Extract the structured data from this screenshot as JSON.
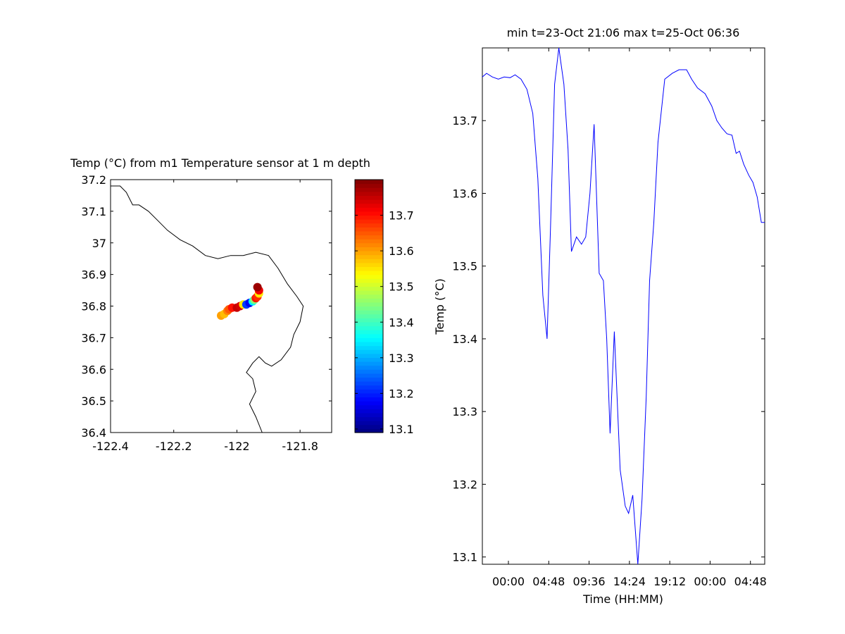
{
  "chart_data": [
    {
      "type": "scatter",
      "title": "Temp (°C) from m1 Temperature sensor at 1 m depth",
      "xlim": [
        -122.4,
        -121.7
      ],
      "ylim": [
        36.4,
        37.2
      ],
      "x_ticks": [
        -122.4,
        -122.2,
        -122,
        -121.8
      ],
      "x_tick_labels": [
        "-122.4",
        "-122.2",
        "-122",
        "-121.8"
      ],
      "y_ticks": [
        36.4,
        36.5,
        36.6,
        36.7,
        36.8,
        36.9,
        37.0,
        37.1,
        37.2
      ],
      "y_tick_labels": [
        "36.4",
        "36.5",
        "36.6",
        "36.7",
        "36.8",
        "36.9",
        "37",
        "37.1",
        "37.2"
      ],
      "coastline": [
        [
          -122.4,
          37.18
        ],
        [
          -122.37,
          37.18
        ],
        [
          -122.35,
          37.16
        ],
        [
          -122.33,
          37.12
        ],
        [
          -122.31,
          37.12
        ],
        [
          -122.28,
          37.1
        ],
        [
          -122.25,
          37.07
        ],
        [
          -122.22,
          37.04
        ],
        [
          -122.18,
          37.01
        ],
        [
          -122.14,
          36.99
        ],
        [
          -122.1,
          36.96
        ],
        [
          -122.06,
          36.95
        ],
        [
          -122.02,
          36.96
        ],
        [
          -121.98,
          36.96
        ],
        [
          -121.94,
          36.97
        ],
        [
          -121.9,
          36.96
        ],
        [
          -121.87,
          36.92
        ],
        [
          -121.84,
          36.87
        ],
        [
          -121.81,
          36.83
        ],
        [
          -121.79,
          36.8
        ],
        [
          -121.8,
          36.75
        ],
        [
          -121.82,
          36.71
        ],
        [
          -121.83,
          36.67
        ],
        [
          -121.86,
          36.63
        ],
        [
          -121.89,
          36.61
        ],
        [
          -121.91,
          36.62
        ],
        [
          -121.93,
          36.64
        ],
        [
          -121.95,
          36.62
        ],
        [
          -121.97,
          36.59
        ],
        [
          -121.95,
          36.57
        ],
        [
          -121.94,
          36.53
        ],
        [
          -121.96,
          36.49
        ],
        [
          -121.94,
          36.45
        ],
        [
          -121.92,
          36.4
        ]
      ],
      "points": [
        {
          "x": -122.05,
          "y": 36.77,
          "t": 13.6
        },
        {
          "x": -122.04,
          "y": 36.775,
          "t": 13.58
        },
        {
          "x": -122.03,
          "y": 36.785,
          "t": 13.62
        },
        {
          "x": -122.025,
          "y": 36.79,
          "t": 13.65
        },
        {
          "x": -122.015,
          "y": 36.795,
          "t": 13.7
        },
        {
          "x": -122.0,
          "y": 36.795,
          "t": 13.75
        },
        {
          "x": -121.99,
          "y": 36.8,
          "t": 13.74
        },
        {
          "x": -121.98,
          "y": 36.805,
          "t": 13.55
        },
        {
          "x": -121.97,
          "y": 36.805,
          "t": 13.22
        },
        {
          "x": -121.96,
          "y": 36.81,
          "t": 13.17
        },
        {
          "x": -121.95,
          "y": 36.815,
          "t": 13.35
        },
        {
          "x": -121.945,
          "y": 36.82,
          "t": 13.45
        },
        {
          "x": -121.94,
          "y": 36.825,
          "t": 13.7
        },
        {
          "x": -121.935,
          "y": 36.83,
          "t": 13.68
        },
        {
          "x": -121.93,
          "y": 36.84,
          "t": 13.55
        },
        {
          "x": -121.93,
          "y": 36.85,
          "t": 13.72
        },
        {
          "x": -121.935,
          "y": 36.86,
          "t": 13.78
        }
      ],
      "colorbar": {
        "range": [
          13.09,
          13.8
        ],
        "ticks": [
          13.1,
          13.2,
          13.3,
          13.4,
          13.5,
          13.6,
          13.7
        ],
        "tick_labels": [
          "13.1",
          "13.2",
          "13.3",
          "13.4",
          "13.5",
          "13.6",
          "13.7"
        ]
      }
    },
    {
      "type": "line",
      "title": "min t=23-Oct 21:06 max t=25-Oct 06:36",
      "xlabel": "Time (HH:MM)",
      "ylabel": "Temp (°C)",
      "xlim": [
        -3.1,
        30.5
      ],
      "ylim": [
        13.09,
        13.8
      ],
      "x_ticks": [
        0,
        4.8,
        9.6,
        14.4,
        19.2,
        24,
        28.8
      ],
      "x_tick_labels": [
        "00:00",
        "04:48",
        "09:36",
        "14:24",
        "19:12",
        "00:00",
        "04:48"
      ],
      "y_ticks": [
        13.1,
        13.2,
        13.3,
        13.4,
        13.5,
        13.6,
        13.7
      ],
      "y_tick_labels": [
        "13.1",
        "13.2",
        "13.3",
        "13.4",
        "13.5",
        "13.6",
        "13.7"
      ],
      "series": [
        {
          "color": "#0000ff",
          "x": [
            -3.1,
            -2.6,
            -1.9,
            -1.2,
            -0.5,
            0.2,
            0.8,
            1.5,
            2.2,
            2.9,
            3.5,
            4.1,
            4.6,
            5.0,
            5.5,
            6.0,
            6.6,
            7.1,
            7.5,
            8.1,
            8.7,
            9.2,
            9.7,
            10.2,
            10.8,
            11.3,
            11.7,
            12.1,
            12.6,
            13.3,
            13.9,
            14.3,
            14.8,
            15.4,
            15.9,
            16.4,
            16.8,
            17.3,
            17.8,
            18.6,
            19.5,
            20.3,
            21.2,
            21.8,
            22.5,
            23.4,
            24.2,
            24.8,
            25.4,
            26.0,
            26.6,
            27.1,
            27.5,
            28.0,
            28.6,
            29.1,
            29.6,
            30.1,
            30.5
          ],
          "y": [
            13.76,
            13.765,
            13.76,
            13.757,
            13.76,
            13.759,
            13.763,
            13.757,
            13.743,
            13.71,
            13.62,
            13.46,
            13.4,
            13.55,
            13.75,
            13.8,
            13.75,
            13.66,
            13.52,
            13.54,
            13.53,
            13.54,
            13.6,
            13.695,
            13.49,
            13.48,
            13.4,
            13.27,
            13.41,
            13.22,
            13.17,
            13.16,
            13.185,
            13.09,
            13.18,
            13.32,
            13.48,
            13.56,
            13.67,
            13.757,
            13.765,
            13.77,
            13.77,
            13.757,
            13.745,
            13.737,
            13.72,
            13.7,
            13.69,
            13.682,
            13.68,
            13.655,
            13.658,
            13.64,
            13.625,
            13.615,
            13.595,
            13.56,
            13.56
          ]
        }
      ]
    }
  ]
}
